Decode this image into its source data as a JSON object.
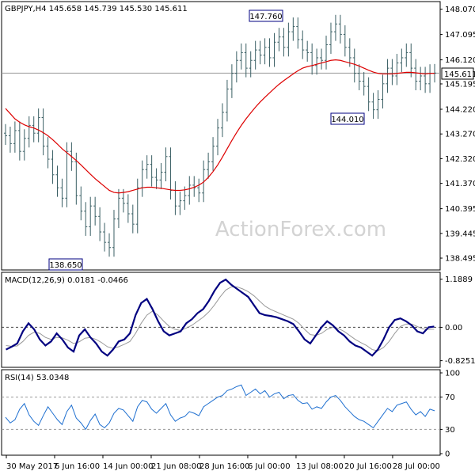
{
  "chart_data": [
    {
      "type": "ohlc",
      "title": "GBPJPY,H4  145.658 145.739 145.530 145.611",
      "watermark": "ActionForex.com",
      "ylim": [
        138.1,
        148.3
      ],
      "yticks": [
        "148.070",
        "147.095",
        "146.120",
        "145.195",
        "144.220",
        "143.270",
        "142.320",
        "141.370",
        "140.395",
        "139.445",
        "138.495"
      ],
      "last_price": "145.611",
      "high_label": "147.760",
      "low_label_1": "138.650",
      "low_label_2": "144.010",
      "colors": {
        "bars": "#3a5f64",
        "ma": "#dd0000",
        "price_line": "#9a9a9a",
        "callout_border": "#000080"
      },
      "series": [
        {
          "type": "ohlc",
          "close": [
            143.2,
            142.9,
            143.4,
            142.6,
            143.1,
            143.6,
            143.3,
            143.9,
            142.8,
            142.3,
            141.7,
            141.2,
            140.8,
            142.6,
            142.2,
            140.9,
            140.3,
            139.7,
            140.5,
            140.1,
            139.5,
            139.1,
            138.9,
            140.0,
            140.8,
            140.6,
            140.2,
            139.8,
            141.2,
            141.9,
            142.1,
            141.6,
            141.5,
            141.8,
            142.4,
            141.1,
            140.5,
            140.7,
            140.9,
            141.3,
            141.2,
            141.0,
            141.9,
            142.2,
            142.8,
            143.5,
            144.1,
            145.0,
            145.6,
            146.1,
            146.4,
            145.8,
            146.1,
            146.5,
            146.3,
            146.6,
            146.2,
            146.8,
            147.0,
            146.6,
            147.2,
            147.4,
            146.9,
            146.5,
            146.4,
            145.9,
            146.2,
            146.1,
            146.7,
            147.2,
            147.5,
            147.1,
            146.6,
            146.2,
            145.6,
            145.3,
            145.1,
            144.5,
            144.2,
            144.6,
            145.2,
            145.8,
            145.5,
            146.0,
            146.2,
            146.4,
            145.8,
            145.3,
            145.5,
            145.2,
            145.6,
            145.611
          ]
        },
        {
          "type": "line",
          "name": "",
          "values": [
            144.25,
            144.05,
            143.85,
            143.72,
            143.62,
            143.55,
            143.5,
            143.42,
            143.32,
            143.2,
            143.05,
            142.88,
            142.7,
            142.55,
            142.4,
            142.25,
            142.08,
            141.9,
            141.72,
            141.55,
            141.4,
            141.25,
            141.1,
            141.02,
            141.0,
            141.02,
            141.05,
            141.1,
            141.15,
            141.2,
            141.22,
            141.22,
            141.2,
            141.18,
            141.15,
            141.12,
            141.1,
            141.1,
            141.12,
            141.16,
            141.22,
            141.3,
            141.42,
            141.6,
            141.82,
            142.08,
            142.38,
            142.7,
            143.02,
            143.32,
            143.6,
            143.85,
            144.08,
            144.3,
            144.5,
            144.68,
            144.85,
            145.02,
            145.18,
            145.32,
            145.45,
            145.58,
            145.7,
            145.8,
            145.86,
            145.9,
            145.95,
            146.0,
            146.05,
            146.1,
            146.12,
            146.1,
            146.05,
            146.0,
            145.95,
            145.88,
            145.8,
            145.72,
            145.65,
            145.6,
            145.58,
            145.58,
            145.58,
            145.6,
            145.62,
            145.64,
            145.64,
            145.62,
            145.6,
            145.58,
            145.6,
            145.6
          ]
        }
      ]
    },
    {
      "type": "line",
      "title": "MACD(12,26,9) 0.0181 -0.0466",
      "ylim": [
        -0.95,
        1.28
      ],
      "yticks": [
        "1.1889",
        "0.00",
        "-0.8251"
      ],
      "colors": {
        "macd": "#000080",
        "signal": "#9a9a9a",
        "zero": "#444444"
      },
      "series": [
        {
          "name": "",
          "values": [
            -0.55,
            -0.48,
            -0.4,
            -0.1,
            0.1,
            -0.05,
            -0.3,
            -0.45,
            -0.35,
            -0.15,
            -0.3,
            -0.5,
            -0.6,
            -0.2,
            -0.05,
            -0.25,
            -0.4,
            -0.6,
            -0.7,
            -0.55,
            -0.35,
            -0.3,
            -0.15,
            0.3,
            0.6,
            0.7,
            0.45,
            0.15,
            -0.1,
            -0.2,
            -0.15,
            -0.1,
            0.1,
            0.2,
            0.35,
            0.45,
            0.65,
            0.9,
            1.1,
            1.18,
            1.05,
            0.95,
            0.85,
            0.75,
            0.55,
            0.35,
            0.3,
            0.28,
            0.25,
            0.2,
            0.15,
            0.08,
            -0.1,
            -0.3,
            -0.4,
            -0.2,
            0.0,
            0.15,
            0.05,
            -0.1,
            -0.2,
            -0.35,
            -0.45,
            -0.5,
            -0.6,
            -0.7,
            -0.55,
            -0.3,
            0.0,
            0.18,
            0.22,
            0.15,
            0.05,
            -0.1,
            -0.15,
            0.0,
            0.0181
          ]
        },
        {
          "name": "",
          "values": [
            -0.45,
            -0.47,
            -0.46,
            -0.35,
            -0.2,
            -0.12,
            -0.15,
            -0.25,
            -0.3,
            -0.25,
            -0.26,
            -0.32,
            -0.4,
            -0.36,
            -0.27,
            -0.25,
            -0.3,
            -0.38,
            -0.48,
            -0.52,
            -0.48,
            -0.42,
            -0.35,
            -0.15,
            0.1,
            0.3,
            0.4,
            0.3,
            0.15,
            0.02,
            -0.05,
            -0.08,
            -0.02,
            0.05,
            0.15,
            0.25,
            0.38,
            0.55,
            0.75,
            0.92,
            1.0,
            1.0,
            0.95,
            0.88,
            0.78,
            0.65,
            0.52,
            0.44,
            0.38,
            0.32,
            0.26,
            0.2,
            0.1,
            -0.05,
            -0.18,
            -0.2,
            -0.15,
            -0.05,
            0.0,
            -0.03,
            -0.1,
            -0.2,
            -0.3,
            -0.38,
            -0.45,
            -0.55,
            -0.58,
            -0.5,
            -0.35,
            -0.15,
            0.02,
            0.08,
            0.08,
            0.02,
            -0.04,
            -0.05,
            -0.0466
          ]
        }
      ]
    },
    {
      "type": "line",
      "title": "RSI(14) 53.0348",
      "ylim": [
        0,
        100
      ],
      "yticks": [
        "100",
        "70",
        "30",
        "0"
      ],
      "colors": {
        "rsi": "#1e6fd0",
        "levels": "#9a9a9a"
      },
      "series": [
        {
          "name": "",
          "values": [
            45,
            38,
            42,
            55,
            62,
            48,
            40,
            35,
            47,
            58,
            50,
            42,
            36,
            52,
            60,
            44,
            38,
            30,
            41,
            49,
            36,
            32,
            38,
            50,
            56,
            54,
            47,
            40,
            58,
            66,
            64,
            55,
            50,
            56,
            62,
            48,
            40,
            44,
            46,
            52,
            50,
            47,
            58,
            62,
            66,
            70,
            72,
            78,
            80,
            83,
            85,
            72,
            76,
            80,
            74,
            78,
            70,
            74,
            76,
            68,
            72,
            73,
            66,
            62,
            63,
            55,
            58,
            56,
            64,
            70,
            72,
            66,
            58,
            52,
            46,
            42,
            40,
            36,
            32,
            40,
            48,
            56,
            52,
            60,
            62,
            64,
            55,
            48,
            52,
            46,
            55,
            53.03
          ]
        }
      ]
    }
  ],
  "x_axis": {
    "labels": [
      "30 May 2017",
      "6 Jun 16:00",
      "14 Jun 00:00",
      "21 Jun 08:00",
      "28 Jun 16:00",
      "6 Jul 00:00",
      "13 Jul 08:00",
      "20 Jul 16:00",
      "28 Jul 00:00"
    ]
  }
}
